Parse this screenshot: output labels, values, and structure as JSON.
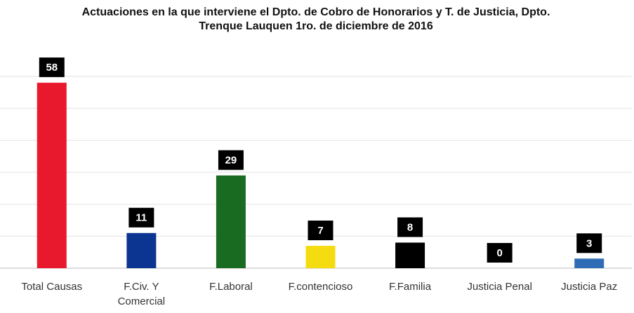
{
  "chart_data": {
    "type": "bar",
    "title": "Actuaciones en la que interviene el Dpto. de Cobro de Honorarios y T. de Justicia, Dpto. Trenque Lauquen 1ro. de diciembre de 2016",
    "categories": [
      "Total Causas",
      "F.Civ. Y Comercial",
      "F.Laboral",
      "F.contencioso",
      "F.Familia",
      "Justicia Penal",
      "Justicia Paz"
    ],
    "values": [
      58,
      11,
      29,
      7,
      8,
      0,
      3
    ],
    "colors": [
      "#e8192c",
      "#0b3590",
      "#1a6b22",
      "#f5dc10",
      "#000000",
      "#000000",
      "#2e6db5"
    ],
    "ylim": [
      0,
      60
    ],
    "yticks": [
      0,
      10,
      20,
      30,
      40,
      50,
      60
    ],
    "grid": true
  }
}
